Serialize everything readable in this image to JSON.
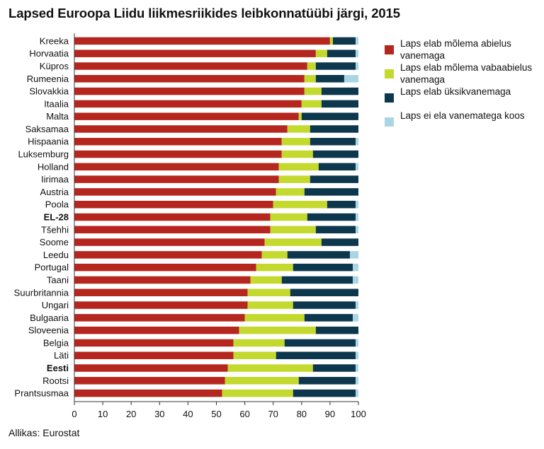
{
  "chart_data": {
    "type": "bar",
    "orientation": "horizontal",
    "stacked": true,
    "title": "Lapsed Euroopa Liidu liikmesriikides leibkonnatüübi järgi, 2015",
    "source": "Allikas: Eurostat",
    "xlim": [
      0,
      100
    ],
    "xticks": [
      0,
      10,
      20,
      30,
      40,
      50,
      60,
      70,
      80,
      90,
      100
    ],
    "categories": [
      "Kreeka",
      "Horvaatia",
      "Küpros",
      "Rumeenia",
      "Slovakkia",
      "Itaalia",
      "Malta",
      "Saksamaa",
      "Hispaania",
      "Luksemburg",
      "Holland",
      "Iirimaa",
      "Austria",
      "Poola",
      "EL-28",
      "Tšehhi",
      "Soome",
      "Leedu",
      "Portugal",
      "Taani",
      "Suurbritannia",
      "Ungari",
      "Bulgaaria",
      "Sloveenia",
      "Belgia",
      "Läti",
      "Eesti",
      "Rootsi",
      "Prantsusmaa"
    ],
    "bold_categories": [
      "EL-28",
      "Eesti"
    ],
    "series": [
      {
        "name": "Laps elab mõlema abielus vanemaga",
        "color": "#b5271e",
        "values": [
          90,
          85,
          82,
          81,
          81,
          80,
          79,
          75,
          73,
          73,
          72,
          72,
          71,
          70,
          69,
          69,
          67,
          66,
          64,
          62,
          61,
          61,
          60,
          58,
          56,
          56,
          54,
          53,
          52
        ]
      },
      {
        "name": "Laps elab mõlema vabaabielus vanemaga",
        "color": "#c4d92e",
        "values": [
          1,
          4,
          3,
          4,
          6,
          7,
          1,
          8,
          10,
          11,
          14,
          11,
          10,
          19,
          13,
          16,
          20,
          9,
          13,
          11,
          15,
          16,
          21,
          27,
          18,
          15,
          30,
          26,
          25
        ]
      },
      {
        "name": "Laps elab üksikvanemaga",
        "color": "#0c374d",
        "values": [
          8,
          10,
          14,
          10,
          13,
          13,
          20,
          17,
          16,
          16,
          13,
          17,
          19,
          10,
          17,
          14,
          13,
          22,
          21,
          25,
          24,
          22,
          17,
          15,
          25,
          28,
          15,
          20,
          22
        ]
      },
      {
        "name": "Laps ei ela vanematega koos",
        "color": "#aad6e4",
        "values": [
          1,
          1,
          1,
          5,
          0,
          0,
          0,
          0,
          1,
          0,
          1,
          0,
          0,
          1,
          1,
          1,
          0,
          3,
          2,
          2,
          0,
          1,
          2,
          0,
          1,
          1,
          1,
          1,
          1
        ]
      }
    ]
  },
  "legend": {
    "items": [
      {
        "label": "Laps elab mõlema abielus vanemaga",
        "color": "#b5271e"
      },
      {
        "label": "Laps elab mõlema vabaabielus vanemaga",
        "color": "#c4d92e"
      },
      {
        "label": "Laps elab üksikvanemaga",
        "color": "#0c374d"
      },
      {
        "label": "Laps ei ela vanematega koos",
        "color": "#aad6e4"
      }
    ]
  }
}
